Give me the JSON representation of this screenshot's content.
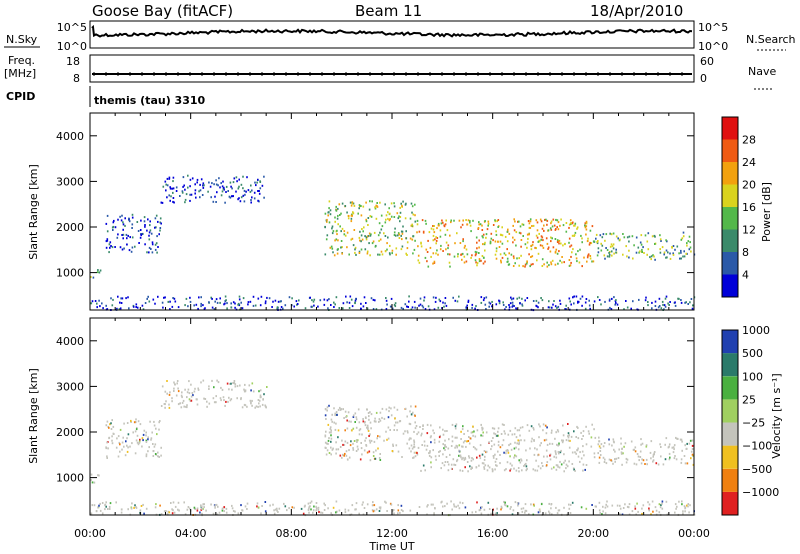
{
  "header": {
    "station": "Goose Bay (fitACF)",
    "beam": "Beam 11",
    "date": "18/Apr/2010"
  },
  "strip_labels": {
    "nsky": "N.Sky",
    "nsearch": "N.Search",
    "freq_line1": "Freq.",
    "freq_line2": "[MHz]",
    "nave": "Nave",
    "cpid": "CPID",
    "cpid_value": "themis (tau) 3310",
    "nsky_ticks": [
      "10^5",
      "10^0"
    ],
    "nsearch_ticks": [
      "10^5",
      "10^0"
    ],
    "freq_ticks": [
      "18",
      "8"
    ],
    "nave_ticks": [
      "60",
      "0"
    ]
  },
  "chart_data": [
    {
      "type": "heatmap",
      "name": "power",
      "ylabel": "Slant Range [km]",
      "xlabel": "Time UT",
      "x_ticks": [
        "00:00",
        "04:00",
        "08:00",
        "12:00",
        "16:00",
        "20:00",
        "00:00"
      ],
      "y_ticks": [
        "1000",
        "2000",
        "3000",
        "4000"
      ],
      "ylim": [
        180,
        4500
      ],
      "colorbar": {
        "label": "Power [dB]",
        "ticks": [
          "4",
          "8",
          "12",
          "16",
          "20",
          "24",
          "28"
        ],
        "colors": [
          "#0000d8",
          "#2a59a8",
          "#3a8a6a",
          "#53b84a",
          "#d9d31e",
          "#f2a10e",
          "#ef5a12",
          "#e01010"
        ]
      },
      "echo_regions": [
        {
          "t": [
            0.0,
            0.4
          ],
          "range": [
            900,
            1150
          ],
          "level": 3
        },
        {
          "t": [
            0.6,
            2.8
          ],
          "range": [
            1450,
            2300
          ],
          "level": 1
        },
        {
          "t": [
            2.8,
            7.0
          ],
          "range": [
            2550,
            3150
          ],
          "level": 1
        },
        {
          "t": [
            9.3,
            13.0
          ],
          "range": [
            1400,
            2600
          ],
          "level": 4
        },
        {
          "t": [
            13.0,
            20.0
          ],
          "range": [
            1150,
            2200
          ],
          "level": 5
        },
        {
          "t": [
            20.0,
            24.0
          ],
          "range": [
            1300,
            1900
          ],
          "level": 3
        },
        {
          "t": [
            0.0,
            24.0
          ],
          "range": [
            200,
            500
          ],
          "level": 1
        }
      ]
    },
    {
      "type": "heatmap",
      "name": "velocity",
      "ylabel": "Slant Range [km]",
      "xlabel": "Time UT",
      "x_ticks": [
        "00:00",
        "04:00",
        "08:00",
        "12:00",
        "16:00",
        "20:00",
        "00:00"
      ],
      "y_ticks": [
        "1000",
        "2000",
        "3000",
        "4000"
      ],
      "ylim": [
        180,
        4500
      ],
      "colorbar": {
        "label": "Velocity [m s⁻¹]",
        "ticks": [
          "1000",
          "500",
          "100",
          "25",
          "−25",
          "−100",
          "−500",
          "−1000"
        ],
        "colors": [
          "#2040b0",
          "#2a7a6a",
          "#4ab040",
          "#a0d060",
          "#c4c4bc",
          "#f0c020",
          "#f08010",
          "#e02020"
        ]
      }
    }
  ],
  "colors": {
    "ground_scatter": "#c4c4bc",
    "line": "#000000"
  }
}
